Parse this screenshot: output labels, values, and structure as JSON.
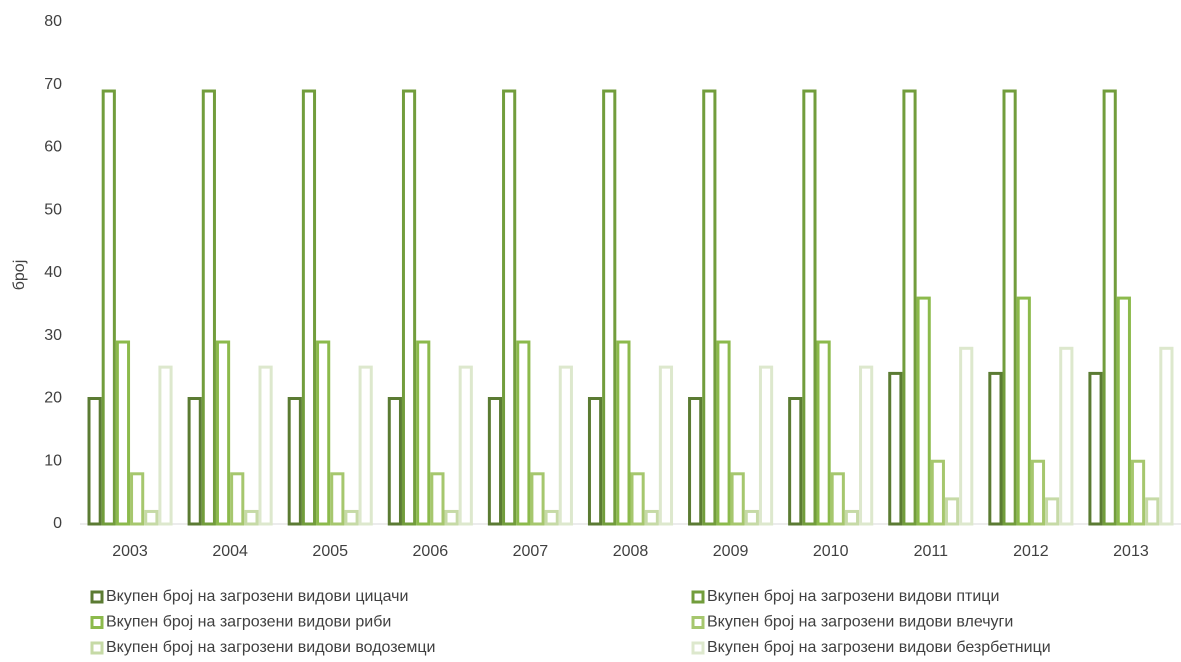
{
  "chart_data": {
    "type": "bar",
    "ylabel": "број",
    "categories": [
      "2003",
      "2004",
      "2005",
      "2006",
      "2007",
      "2008",
      "2009",
      "2010",
      "2011",
      "2012",
      "2013"
    ],
    "series": [
      {
        "name": "Вкупен број на загрозени видови цицачи",
        "color": "#5b7b33",
        "values": [
          20,
          20,
          20,
          20,
          20,
          20,
          20,
          20,
          24,
          24,
          24
        ]
      },
      {
        "name": "Вкупен број на загрозени видови птици",
        "color": "#729d3c",
        "values": [
          69,
          69,
          69,
          69,
          69,
          69,
          69,
          69,
          69,
          69,
          69
        ]
      },
      {
        "name": "Вкупен број на загрозени видови риби",
        "color": "#8cba4c",
        "values": [
          29,
          29,
          29,
          29,
          29,
          29,
          29,
          29,
          36,
          36,
          36
        ]
      },
      {
        "name": "Вкупен број на загрозени видови влечуги",
        "color": "#a6c76e",
        "values": [
          8,
          8,
          8,
          8,
          8,
          8,
          8,
          8,
          10,
          10,
          10
        ]
      },
      {
        "name": "Вкупен број на загрозени видови водоземци",
        "color": "#c6daa6",
        "values": [
          2,
          2,
          2,
          2,
          2,
          2,
          2,
          2,
          4,
          4,
          4
        ]
      },
      {
        "name": "Вкупен број на загрозени видови безрбетници",
        "color": "#dde8cd",
        "values": [
          25,
          25,
          25,
          25,
          25,
          25,
          25,
          25,
          28,
          28,
          28
        ]
      }
    ],
    "ylim": [
      0,
      80
    ],
    "yticks": [
      0,
      10,
      20,
      30,
      40,
      50,
      60,
      70,
      80
    ],
    "grid": false,
    "legend": "bottom"
  }
}
